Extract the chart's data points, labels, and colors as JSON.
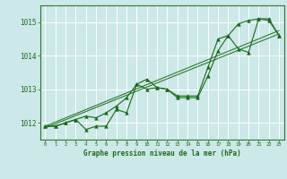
{
  "title": "Graphe pression niveau de la mer (hPa)",
  "xlabel_ticks": [
    0,
    1,
    2,
    3,
    4,
    5,
    6,
    7,
    8,
    9,
    10,
    11,
    12,
    13,
    14,
    15,
    16,
    17,
    18,
    19,
    20,
    21,
    22,
    23
  ],
  "ylim": [
    1011.5,
    1015.5
  ],
  "xlim": [
    -0.5,
    23.5
  ],
  "yticks": [
    1012,
    1013,
    1014,
    1015
  ],
  "background_color": "#cce8e8",
  "grid_color": "#ffffff",
  "line_color": "#1a6b1a",
  "marker_color": "#1a6b1a",
  "series1": {
    "x": [
      0,
      1,
      2,
      3,
      4,
      5,
      6,
      7,
      8,
      9,
      10,
      11,
      12,
      13,
      14,
      15,
      16,
      17,
      18,
      19,
      20,
      21,
      22,
      23
    ],
    "y": [
      1011.9,
      1011.9,
      1012.0,
      1012.1,
      1011.8,
      1011.9,
      1011.9,
      1012.4,
      1012.3,
      1013.15,
      1013.0,
      1013.05,
      1013.0,
      1012.75,
      1012.75,
      1012.75,
      1013.4,
      1014.15,
      1014.6,
      1014.95,
      1015.05,
      1015.1,
      1015.05,
      1014.6
    ]
  },
  "series2": {
    "x": [
      0,
      1,
      2,
      3,
      4,
      5,
      6,
      7,
      8,
      9,
      10,
      11,
      12,
      13,
      14,
      15,
      16,
      17,
      18,
      19,
      20,
      21,
      22,
      23
    ],
    "y": [
      1011.9,
      1011.9,
      1012.0,
      1012.1,
      1012.2,
      1012.15,
      1012.3,
      1012.5,
      1012.75,
      1013.15,
      1013.3,
      1013.05,
      1013.0,
      1012.8,
      1012.8,
      1012.8,
      1013.65,
      1014.5,
      1014.6,
      1014.2,
      1014.1,
      1015.1,
      1015.1,
      1014.6
    ]
  },
  "trend_line1": {
    "x": [
      0,
      23
    ],
    "y": [
      1011.85,
      1014.65
    ]
  },
  "trend_line2": {
    "x": [
      0,
      23
    ],
    "y": [
      1011.9,
      1014.75
    ]
  }
}
